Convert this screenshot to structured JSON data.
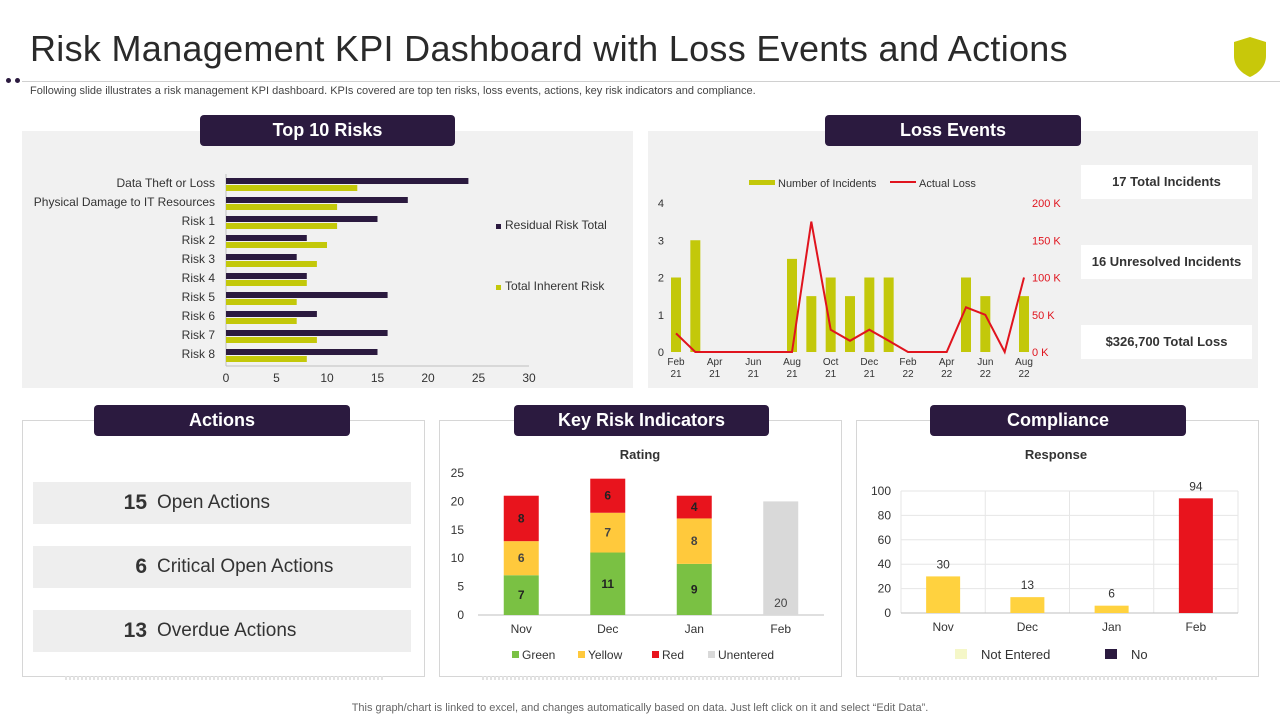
{
  "page": {
    "title": "Risk Management KPI Dashboard with Loss Events and Actions",
    "subtitle": "Following slide illustrates a risk management KPI dashboard. KPIs covered are top ten risks, loss events, actions, key risk indicators and compliance.",
    "footer": "This graph/chart is linked to excel,  and changes automatically based on data. Just left click on it and select “Edit Data”.",
    "shield_icon": "shield-icon",
    "accent": "#2b1a3f",
    "shield_color": "#c8c80a"
  },
  "headers": {
    "top_risks": "Top 10 Risks",
    "loss_events": "Loss Events",
    "actions": "Actions",
    "kri": "Key Risk Indicators",
    "compliance": "Compliance"
  },
  "loss_stats": {
    "total_incidents": "17 Total Incidents",
    "unresolved": "16 Unresolved Incidents",
    "total_loss": "$326,700  Total Loss"
  },
  "actions": [
    {
      "num": "15",
      "label": "Open Actions"
    },
    {
      "num": "6",
      "label": "Critical Open Actions"
    },
    {
      "num": "13",
      "label": "Overdue Actions"
    }
  ],
  "chart_data": [
    {
      "id": "top-risks",
      "type": "bar",
      "orientation": "horizontal",
      "categories": [
        "Data Theft or Loss",
        "Physical Damage to IT Resources",
        "Risk 1",
        "Risk 2",
        "Risk 3",
        "Risk 4",
        "Risk 5",
        "Risk 6",
        "Risk 7",
        "Risk 8"
      ],
      "series": [
        {
          "name": "Residual Risk Total",
          "color": "#2b1a3f",
          "values": [
            24,
            18,
            15,
            8,
            7,
            8,
            16,
            9,
            16,
            15
          ]
        },
        {
          "name": "Total Inherent Risk",
          "color": "#c3c80a",
          "values": [
            13,
            11,
            11,
            10,
            9,
            8,
            7,
            7,
            9,
            8
          ]
        }
      ],
      "xlim": [
        0,
        30
      ],
      "xticks": [
        0,
        5,
        10,
        15,
        20,
        25,
        30
      ],
      "legend": "right"
    },
    {
      "id": "loss-events",
      "type": "bar+line",
      "x": [
        "Feb 21",
        "Mar 21",
        "Apr 21",
        "May 21",
        "Jun 21",
        "Jul 21",
        "Aug 21",
        "Sep 21",
        "Oct 21",
        "Nov 21",
        "Dec 21",
        "Jan 22",
        "Feb 22",
        "Mar 22",
        "Apr 22",
        "May 22",
        "Jun 22",
        "Jul 22",
        "Aug 22"
      ],
      "xtick_labels": [
        [
          "Feb",
          "21"
        ],
        [
          "Apr",
          "21"
        ],
        [
          "Jun",
          "21"
        ],
        [
          "Aug",
          "21"
        ],
        [
          "Oct",
          "21"
        ],
        [
          "Dec",
          "21"
        ],
        [
          "Feb",
          "22"
        ],
        [
          "Apr",
          "22"
        ],
        [
          "Jun",
          "22"
        ],
        [
          "Aug",
          "22"
        ]
      ],
      "series": [
        {
          "name": "Number of Incidents",
          "color": "#c3c80a",
          "axis": "left",
          "values": [
            2,
            3,
            0,
            0,
            0,
            0,
            2.5,
            1.5,
            2,
            1.5,
            2,
            2,
            0,
            0,
            0,
            2,
            1.5,
            0,
            1.5
          ]
        },
        {
          "name": "Actual Loss",
          "color": "#e0141e",
          "axis": "right",
          "values": [
            25000,
            0,
            0,
            0,
            0,
            0,
            0,
            175000,
            30000,
            15000,
            30000,
            15000,
            0,
            0,
            0,
            60000,
            50000,
            0,
            100000
          ]
        }
      ],
      "ylim_left": [
        0,
        4
      ],
      "yticks_left": [
        0,
        1,
        2,
        3,
        4
      ],
      "ylim_right": [
        0,
        200000
      ],
      "yticks_right": [
        "0 K",
        "50 K",
        "100 K",
        "150 K",
        "200 K"
      ],
      "legend": "top"
    },
    {
      "id": "kri",
      "type": "stacked-bar",
      "title": "Rating",
      "categories": [
        "Nov",
        "Dec",
        "Jan",
        "Feb"
      ],
      "series": [
        {
          "name": "Green",
          "color": "#7ac143",
          "values": [
            7,
            11,
            9,
            0
          ]
        },
        {
          "name": "Yellow",
          "color": "#ffc93c",
          "values": [
            6,
            7,
            8,
            0
          ]
        },
        {
          "name": "Red",
          "color": "#e8141d",
          "values": [
            8,
            6,
            4,
            0
          ]
        },
        {
          "name": "Unentered",
          "color": "#d9d9d9",
          "values": [
            0,
            0,
            0,
            20
          ]
        }
      ],
      "ylim": [
        0,
        25
      ],
      "yticks": [
        0,
        5,
        10,
        15,
        20,
        25
      ],
      "legend": "bottom"
    },
    {
      "id": "compliance",
      "type": "bar",
      "title": "Response",
      "categories": [
        "Nov",
        "Dec",
        "Jan",
        "Feb"
      ],
      "values": [
        30,
        13,
        6,
        94
      ],
      "colors": [
        "#ffd23f",
        "#ffd23f",
        "#ffd23f",
        "#e8141d"
      ],
      "legend_entries": [
        {
          "name": "Not Entered",
          "color": "#f5f7c8"
        },
        {
          "name": "No",
          "color": "#2b1a3f"
        }
      ],
      "ylim": [
        0,
        100
      ],
      "yticks": [
        0,
        20,
        40,
        60,
        80,
        100
      ],
      "legend": "bottom"
    }
  ]
}
